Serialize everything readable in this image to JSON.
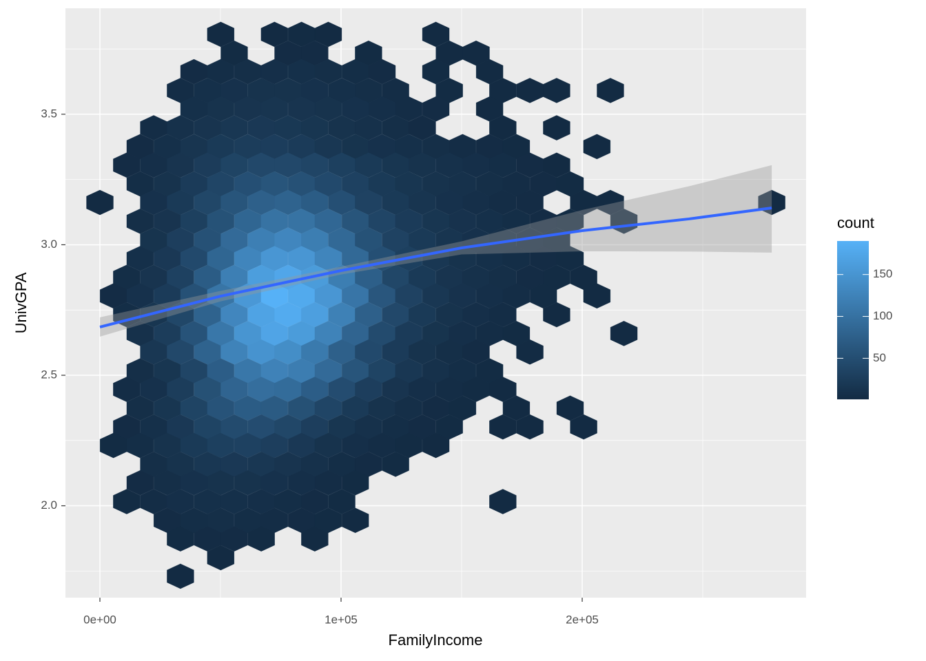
{
  "chart_data": {
    "type": "hexbin",
    "x_label": "FamilyIncome",
    "y_label": "UnivGPA",
    "xlim": [
      -14286,
      292857
    ],
    "ylim": [
      1.648,
      3.906
    ],
    "xticks": [
      {
        "value": 0,
        "label": "0e+00"
      },
      {
        "value": 100000,
        "label": "1e+05"
      },
      {
        "value": 200000,
        "label": "2e+05"
      }
    ],
    "xminor": [
      50000,
      150000,
      250000
    ],
    "yticks": [
      {
        "value": 2,
        "label": "2.0"
      },
      2.5,
      {
        "value": 3,
        "label": "3.0"
      },
      3.5
    ],
    "yminor": [
      1.75,
      2.25,
      2.75,
      3.25,
      3.75
    ],
    "grid": true,
    "legend": {
      "title": "count",
      "low": "#132B43",
      "high": "#56B1F7",
      "lim": [
        1,
        190
      ],
      "ticks": [
        50,
        100,
        150
      ],
      "position": "right"
    },
    "smooth": {
      "color": "#3366FF",
      "band_color": "#999999",
      "x": [
        0,
        50000,
        100000,
        150000,
        200000,
        244300,
        278600
      ],
      "y": [
        2.685,
        2.803,
        2.901,
        2.988,
        3.054,
        3.099,
        3.141
      ],
      "lower": [
        2.648,
        2.783,
        2.886,
        2.963,
        2.975,
        2.974,
        2.97
      ],
      "upper": [
        2.722,
        2.823,
        2.916,
        3.013,
        3.133,
        3.224,
        3.305
      ]
    },
    "rows": [
      {
        "y": 3.806,
        "x": [
          50100,
          72400,
          83600,
          94700,
          139300
        ],
        "count": [
          1,
          1,
          2,
          1,
          1
        ]
      },
      {
        "y": 3.734,
        "x": [
          55700,
          78000,
          89100,
          111400,
          144900,
          156000
        ],
        "count": [
          2,
          3,
          3,
          2,
          1,
          1
        ]
      },
      {
        "y": 3.663,
        "x": [
          39000,
          50100,
          61300,
          72400,
          83600,
          94700,
          105900,
          117000,
          139300,
          161600
        ],
        "count": [
          3,
          5,
          6,
          7,
          8,
          6,
          5,
          3,
          2,
          1
        ]
      },
      {
        "y": 3.591,
        "x": [
          33400,
          44600,
          55700,
          66900,
          78000,
          89100,
          100300,
          111400,
          122600,
          144900,
          167100,
          178300,
          189400,
          211700
        ],
        "count": [
          4,
          8,
          10,
          12,
          12,
          10,
          8,
          6,
          4,
          2,
          1,
          1,
          1,
          1
        ]
      },
      {
        "y": 3.52,
        "x": [
          39000,
          50100,
          61300,
          72400,
          83600,
          94700,
          105900,
          117000,
          128100,
          139300,
          161600
        ],
        "count": [
          8,
          12,
          14,
          15,
          14,
          12,
          10,
          7,
          4,
          3,
          1
        ]
      },
      {
        "y": 3.448,
        "x": [
          22300,
          33400,
          44600,
          55700,
          66900,
          78000,
          89100,
          100300,
          111400,
          122600,
          133700,
          167100,
          189400
        ],
        "count": [
          4,
          9,
          14,
          18,
          20,
          19,
          16,
          12,
          9,
          6,
          3,
          1,
          1
        ]
      },
      {
        "y": 3.376,
        "x": [
          16700,
          27900,
          39000,
          50100,
          61300,
          72400,
          83600,
          94700,
          105900,
          117000,
          128100,
          139300,
          150400,
          161600,
          172700,
          206100
        ],
        "count": [
          3,
          8,
          15,
          22,
          26,
          27,
          24,
          18,
          13,
          10,
          8,
          6,
          4,
          3,
          2,
          1
        ]
      },
      {
        "y": 3.305,
        "x": [
          11100,
          22300,
          33400,
          44600,
          55700,
          66900,
          78000,
          89100,
          100300,
          111400,
          122600,
          133700,
          144900,
          156000,
          167100,
          178300,
          189400
        ],
        "count": [
          3,
          7,
          14,
          25,
          36,
          42,
          42,
          38,
          30,
          22,
          16,
          12,
          9,
          7,
          5,
          3,
          1
        ]
      },
      {
        "y": 3.233,
        "x": [
          16700,
          27900,
          39000,
          50100,
          61300,
          72400,
          83600,
          94700,
          105900,
          117000,
          128100,
          139300,
          150400,
          161600,
          172700,
          183900,
          195000
        ],
        "count": [
          5,
          12,
          24,
          38,
          52,
          60,
          55,
          44,
          32,
          22,
          16,
          12,
          9,
          6,
          4,
          3,
          2
        ]
      },
      {
        "y": 3.162,
        "x": [
          0,
          22300,
          33400,
          44600,
          55700,
          66900,
          78000,
          89100,
          100300,
          111400,
          122600,
          133700,
          144900,
          156000,
          167100,
          178300,
          200600,
          211700,
          278600
        ],
        "count": [
          1,
          10,
          22,
          40,
          60,
          76,
          80,
          70,
          52,
          34,
          22,
          15,
          10,
          7,
          4,
          3,
          1,
          1,
          1
        ]
      },
      {
        "y": 3.09,
        "x": [
          16700,
          27900,
          39000,
          50100,
          61300,
          72400,
          83600,
          94700,
          105900,
          117000,
          128100,
          139300,
          150400,
          161600,
          172700,
          183900,
          195000,
          217300
        ],
        "count": [
          6,
          14,
          30,
          56,
          84,
          102,
          102,
          86,
          60,
          38,
          24,
          16,
          11,
          8,
          5,
          3,
          2,
          2
        ]
      },
      {
        "y": 3.018,
        "x": [
          22300,
          33400,
          44600,
          55700,
          66900,
          78000,
          89100,
          100300,
          111400,
          122600,
          133700,
          144900,
          156000,
          167100,
          178300,
          189400
        ],
        "count": [
          13,
          28,
          55,
          90,
          120,
          130,
          118,
          88,
          56,
          34,
          22,
          15,
          10,
          6,
          4,
          2
        ]
      },
      {
        "y": 2.947,
        "x": [
          16700,
          27900,
          39000,
          50100,
          61300,
          72400,
          83600,
          94700,
          105900,
          117000,
          128100,
          139300,
          150400,
          161600,
          172700,
          183900,
          195000
        ],
        "count": [
          8,
          20,
          44,
          84,
          128,
          152,
          152,
          128,
          88,
          52,
          30,
          18,
          12,
          8,
          5,
          3,
          2
        ]
      },
      {
        "y": 2.875,
        "x": [
          11100,
          22300,
          33400,
          44600,
          55700,
          66900,
          78000,
          89100,
          100300,
          111400,
          122600,
          133700,
          144900,
          156000,
          167100,
          178300,
          189400,
          200600
        ],
        "count": [
          5,
          14,
          32,
          70,
          120,
          163,
          175,
          160,
          118,
          74,
          40,
          22,
          14,
          9,
          6,
          3,
          2,
          1
        ]
      },
      {
        "y": 2.804,
        "x": [
          5600,
          16700,
          27900,
          39000,
          50100,
          61300,
          72400,
          83600,
          94700,
          105900,
          117000,
          128100,
          139300,
          150400,
          161600,
          172700,
          183900,
          206100
        ],
        "count": [
          3,
          10,
          24,
          55,
          105,
          155,
          190,
          180,
          152,
          106,
          62,
          34,
          18,
          11,
          7,
          4,
          2,
          1
        ]
      },
      {
        "y": 2.732,
        "x": [
          11100,
          22300,
          33400,
          44600,
          55700,
          66900,
          78000,
          89100,
          100300,
          111400,
          122600,
          133700,
          144900,
          156000,
          167100,
          189400
        ],
        "count": [
          5,
          16,
          40,
          80,
          130,
          170,
          182,
          165,
          122,
          76,
          42,
          22,
          12,
          7,
          4,
          1
        ]
      },
      {
        "y": 2.66,
        "x": [
          16700,
          27900,
          39000,
          50100,
          61300,
          72400,
          83600,
          94700,
          105900,
          117000,
          128100,
          139300,
          150400,
          161600,
          172700,
          217300
        ],
        "count": [
          9,
          26,
          58,
          108,
          150,
          172,
          160,
          125,
          82,
          46,
          24,
          13,
          7,
          4,
          2,
          1
        ]
      },
      {
        "y": 2.589,
        "x": [
          22300,
          33400,
          44600,
          55700,
          66900,
          78000,
          89100,
          100300,
          111400,
          122600,
          133700,
          144900,
          156000,
          178300
        ],
        "count": [
          18,
          42,
          80,
          125,
          148,
          140,
          112,
          76,
          44,
          24,
          12,
          6,
          3,
          1
        ]
      },
      {
        "y": 2.517,
        "x": [
          16700,
          27900,
          39000,
          50100,
          61300,
          72400,
          83600,
          94700,
          105900,
          117000,
          128100,
          139300,
          150400,
          161600
        ],
        "count": [
          6,
          16,
          38,
          72,
          108,
          124,
          116,
          90,
          60,
          36,
          18,
          9,
          5,
          2
        ]
      },
      {
        "y": 2.446,
        "x": [
          11100,
          22300,
          33400,
          44600,
          55700,
          66900,
          78000,
          89100,
          100300,
          111400,
          122600,
          133700,
          144900,
          156000,
          167100
        ],
        "count": [
          4,
          10,
          26,
          54,
          82,
          96,
          92,
          72,
          48,
          28,
          14,
          7,
          4,
          2,
          1
        ]
      },
      {
        "y": 2.374,
        "x": [
          16700,
          27900,
          39000,
          50100,
          61300,
          72400,
          83600,
          94700,
          105900,
          117000,
          128100,
          139300,
          150400,
          172700,
          195000
        ],
        "count": [
          6,
          16,
          36,
          58,
          70,
          68,
          54,
          38,
          22,
          12,
          6,
          3,
          2,
          1,
          1
        ]
      },
      {
        "y": 2.302,
        "x": [
          11100,
          22300,
          33400,
          44600,
          55700,
          66900,
          78000,
          89100,
          100300,
          111400,
          122600,
          133700,
          144900,
          167100,
          178300,
          200600
        ],
        "count": [
          3,
          8,
          20,
          36,
          46,
          48,
          40,
          28,
          16,
          9,
          5,
          3,
          2,
          1,
          1,
          1
        ]
      },
      {
        "y": 2.231,
        "x": [
          5600,
          16700,
          27900,
          39000,
          50100,
          61300,
          72400,
          83600,
          94700,
          105900,
          117000,
          128100,
          139300
        ],
        "count": [
          2,
          5,
          12,
          22,
          30,
          32,
          28,
          20,
          12,
          7,
          4,
          2,
          1
        ]
      },
      {
        "y": 2.159,
        "x": [
          22300,
          33400,
          44600,
          55700,
          66900,
          78000,
          89100,
          100300,
          111400,
          122600
        ],
        "count": [
          6,
          12,
          18,
          20,
          18,
          14,
          9,
          5,
          3,
          2
        ]
      },
      {
        "y": 2.088,
        "x": [
          16700,
          27900,
          39000,
          50100,
          61300,
          72400,
          83600,
          94700,
          105900
        ],
        "count": [
          3,
          6,
          10,
          12,
          12,
          10,
          7,
          4,
          2
        ]
      },
      {
        "y": 2.016,
        "x": [
          11100,
          22300,
          33400,
          44600,
          55700,
          66900,
          78000,
          89100,
          100300,
          167100
        ],
        "count": [
          2,
          4,
          7,
          8,
          8,
          7,
          5,
          3,
          2,
          1
        ]
      },
      {
        "y": 1.944,
        "x": [
          27900,
          39000,
          50100,
          61300,
          72400,
          83600,
          94700,
          105900
        ],
        "count": [
          3,
          5,
          6,
          5,
          4,
          3,
          2,
          1
        ]
      },
      {
        "y": 1.873,
        "x": [
          33400,
          44600,
          55700,
          66900,
          89100
        ],
        "count": [
          2,
          3,
          3,
          2,
          1
        ]
      },
      {
        "y": 1.801,
        "x": [
          50100
        ],
        "count": [
          1
        ]
      },
      {
        "y": 1.73,
        "x": [
          33400
        ],
        "count": [
          1
        ]
      }
    ]
  }
}
